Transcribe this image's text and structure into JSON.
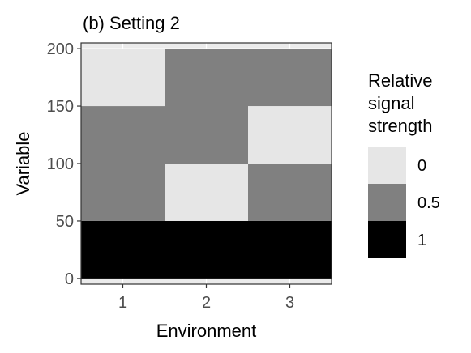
{
  "chart_data": {
    "type": "heatmap",
    "title": "(b) Setting 2",
    "xlabel": "Environment",
    "ylabel": "Variable",
    "x_categories": [
      1,
      2,
      3
    ],
    "x_ticks": [
      "1",
      "2",
      "3"
    ],
    "y_ticks": [
      "0",
      "50",
      "100",
      "150",
      "200"
    ],
    "ylim": [
      0,
      200
    ],
    "grid": true,
    "cells": [
      {
        "x": 1,
        "y_from": 0,
        "y_to": 50,
        "value": 1
      },
      {
        "x": 1,
        "y_from": 50,
        "y_to": 150,
        "value": 0.5
      },
      {
        "x": 1,
        "y_from": 150,
        "y_to": 200,
        "value": 0
      },
      {
        "x": 2,
        "y_from": 0,
        "y_to": 50,
        "value": 1
      },
      {
        "x": 2,
        "y_from": 50,
        "y_to": 100,
        "value": 0
      },
      {
        "x": 2,
        "y_from": 100,
        "y_to": 200,
        "value": 0.5
      },
      {
        "x": 3,
        "y_from": 0,
        "y_to": 50,
        "value": 1
      },
      {
        "x": 3,
        "y_from": 50,
        "y_to": 100,
        "value": 0.5
      },
      {
        "x": 3,
        "y_from": 100,
        "y_to": 150,
        "value": 0
      },
      {
        "x": 3,
        "y_from": 150,
        "y_to": 200,
        "value": 0.5
      }
    ],
    "legend": {
      "title_lines": [
        "Relative",
        "signal",
        "strength"
      ],
      "placement": "right",
      "entries": [
        {
          "label": "0",
          "value": 0,
          "color": "#e6e6e6"
        },
        {
          "label": "0.5",
          "value": 0.5,
          "color": "#808080"
        },
        {
          "label": "1",
          "value": 1,
          "color": "#000000"
        }
      ]
    },
    "colors": {
      "panel_bg": "#ebebeb",
      "grid": "#ffffff",
      "tick_text": "#4d4d4d",
      "tick_mark": "#333333"
    }
  }
}
